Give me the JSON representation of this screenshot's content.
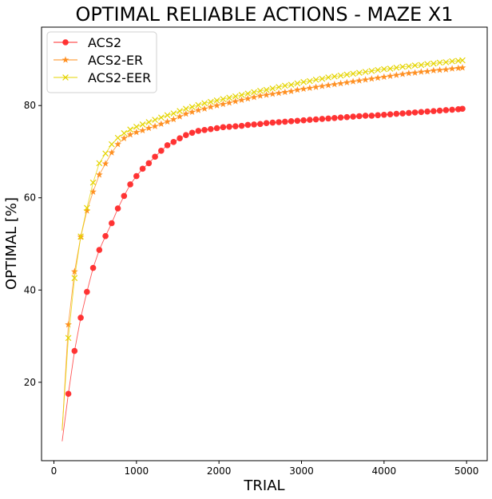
{
  "chart_data": {
    "type": "line",
    "title": "OPTIMAL RELIABLE ACTIONS - MAZE X1",
    "xlabel": "TRIAL",
    "ylabel": "OPTIMAL [%]",
    "xlim": [
      -150,
      5250
    ],
    "ylim": [
      3,
      97
    ],
    "xticks": [
      0,
      1000,
      2000,
      3000,
      4000,
      5000
    ],
    "yticks": [
      20,
      40,
      60,
      80
    ],
    "grid": false,
    "legend_position": "upper left",
    "x": [
      100,
      175,
      250,
      325,
      400,
      475,
      550,
      625,
      700,
      775,
      850,
      925,
      1000,
      1075,
      1150,
      1225,
      1300,
      1375,
      1450,
      1525,
      1600,
      1675,
      1750,
      1825,
      1900,
      1975,
      2050,
      2125,
      2200,
      2275,
      2350,
      2425,
      2500,
      2575,
      2650,
      2725,
      2800,
      2875,
      2950,
      3025,
      3100,
      3175,
      3250,
      3325,
      3400,
      3475,
      3550,
      3625,
      3700,
      3775,
      3850,
      3925,
      4000,
      4075,
      4150,
      4225,
      4300,
      4375,
      4450,
      4525,
      4600,
      4675,
      4750,
      4825,
      4900,
      4950
    ],
    "series": [
      {
        "name": "ACS2",
        "color": "#ff2a2a",
        "marker": "o",
        "marker_from_index": 1,
        "values": [
          7.2,
          17.5,
          26.8,
          34.0,
          39.6,
          44.8,
          48.7,
          51.7,
          54.5,
          57.7,
          60.4,
          62.9,
          64.7,
          66.3,
          67.5,
          68.9,
          70.2,
          71.4,
          72.1,
          72.9,
          73.6,
          74.1,
          74.5,
          74.7,
          74.9,
          75.1,
          75.3,
          75.4,
          75.5,
          75.6,
          75.8,
          75.9,
          76.0,
          76.2,
          76.3,
          76.4,
          76.5,
          76.6,
          76.7,
          76.8,
          76.9,
          77.0,
          77.1,
          77.2,
          77.3,
          77.4,
          77.5,
          77.6,
          77.7,
          77.8,
          77.8,
          77.9,
          78.0,
          78.1,
          78.2,
          78.3,
          78.4,
          78.5,
          78.6,
          78.7,
          78.8,
          78.9,
          79.0,
          79.1,
          79.2,
          79.3
        ]
      },
      {
        "name": "ACS2-ER",
        "color": "#ff8c1a",
        "marker": "*",
        "marker_from_index": 1,
        "values": [
          9.5,
          32.5,
          44.0,
          51.5,
          57.2,
          61.3,
          65.0,
          67.4,
          69.8,
          71.6,
          72.9,
          73.7,
          74.2,
          74.6,
          75.1,
          75.5,
          76.0,
          76.5,
          77.0,
          77.6,
          78.2,
          78.6,
          79.0,
          79.3,
          79.7,
          80.0,
          80.3,
          80.6,
          80.9,
          81.2,
          81.5,
          81.8,
          82.1,
          82.3,
          82.5,
          82.7,
          82.9,
          83.1,
          83.4,
          83.6,
          83.8,
          84.0,
          84.2,
          84.4,
          84.6,
          84.8,
          85.0,
          85.2,
          85.4,
          85.6,
          85.8,
          86.0,
          86.2,
          86.4,
          86.6,
          86.8,
          87.0,
          87.1,
          87.3,
          87.4,
          87.6,
          87.7,
          87.8,
          88.0,
          88.1,
          88.2
        ]
      },
      {
        "name": "ACS2-EER",
        "color": "#e5d400",
        "marker": "x",
        "marker_from_index": 1,
        "values": [
          9.8,
          29.6,
          42.6,
          51.6,
          57.8,
          63.3,
          67.5,
          69.6,
          71.6,
          73.0,
          74.0,
          74.8,
          75.4,
          75.9,
          76.4,
          76.9,
          77.4,
          77.9,
          78.3,
          78.8,
          79.3,
          79.7,
          80.1,
          80.5,
          80.8,
          81.1,
          81.4,
          81.7,
          82.0,
          82.3,
          82.6,
          82.9,
          83.2,
          83.4,
          83.7,
          84.0,
          84.3,
          84.5,
          84.8,
          85.1,
          85.3,
          85.6,
          85.8,
          86.1,
          86.3,
          86.5,
          86.7,
          86.9,
          87.1,
          87.3,
          87.5,
          87.7,
          87.9,
          88.0,
          88.2,
          88.4,
          88.5,
          88.7,
          88.8,
          89.0,
          89.1,
          89.3,
          89.4,
          89.6,
          89.7,
          89.8
        ]
      }
    ]
  }
}
